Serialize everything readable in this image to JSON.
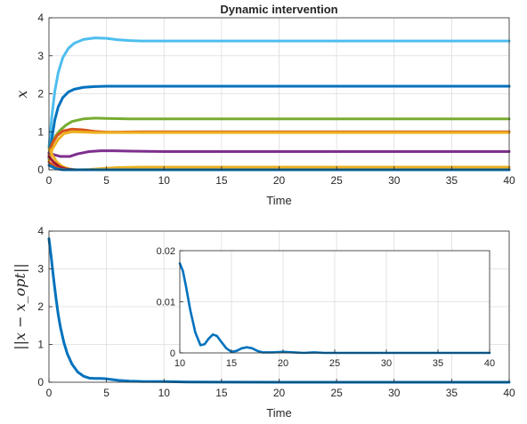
{
  "chart_data": [
    {
      "id": "top",
      "type": "line",
      "title": "Dynamic intervention",
      "xlabel": "Time",
      "ylabel": "x",
      "xlim": [
        0,
        40
      ],
      "ylim": [
        0,
        4
      ],
      "xticks": [
        0,
        5,
        10,
        15,
        20,
        25,
        30,
        35,
        40
      ],
      "yticks": [
        0,
        1,
        2,
        3,
        4
      ],
      "grid": true,
      "series": [
        {
          "color": "#4DBEEE",
          "points": [
            [
              0,
              0.6
            ],
            [
              0.25,
              1.4
            ],
            [
              0.5,
              2.05
            ],
            [
              0.8,
              2.55
            ],
            [
              1.2,
              2.95
            ],
            [
              1.7,
              3.2
            ],
            [
              2.2,
              3.33
            ],
            [
              3,
              3.43
            ],
            [
              4,
              3.47
            ],
            [
              5,
              3.46
            ],
            [
              6,
              3.42
            ],
            [
              7,
              3.4
            ],
            [
              8,
              3.39
            ],
            [
              10,
              3.39
            ],
            [
              40,
              3.39
            ]
          ]
        },
        {
          "color": "#0072BD",
          "points": [
            [
              0,
              0.3
            ],
            [
              0.25,
              0.8
            ],
            [
              0.5,
              1.3
            ],
            [
              0.8,
              1.65
            ],
            [
              1.2,
              1.9
            ],
            [
              1.7,
              2.05
            ],
            [
              2.2,
              2.12
            ],
            [
              3,
              2.17
            ],
            [
              4,
              2.19
            ],
            [
              5,
              2.2
            ],
            [
              7,
              2.2
            ],
            [
              40,
              2.2
            ]
          ]
        },
        {
          "color": "#77AC30",
          "points": [
            [
              0,
              0.45
            ],
            [
              0.3,
              0.7
            ],
            [
              0.6,
              0.9
            ],
            [
              1,
              1.05
            ],
            [
              1.5,
              1.18
            ],
            [
              2,
              1.27
            ],
            [
              3,
              1.34
            ],
            [
              4,
              1.36
            ],
            [
              5,
              1.35
            ],
            [
              7,
              1.34
            ],
            [
              10,
              1.34
            ],
            [
              40,
              1.34
            ]
          ]
        },
        {
          "color": "#D95319",
          "points": [
            [
              0,
              0.4
            ],
            [
              0.3,
              0.7
            ],
            [
              0.7,
              0.9
            ],
            [
              1.2,
              1.02
            ],
            [
              2,
              1.07
            ],
            [
              3,
              1.05
            ],
            [
              4,
              1.01
            ],
            [
              5,
              0.99
            ],
            [
              6,
              0.99
            ],
            [
              8,
              1.0
            ],
            [
              40,
              1.0
            ]
          ]
        },
        {
          "color": "#EDB120",
          "points": [
            [
              0,
              0.25
            ],
            [
              0.3,
              0.55
            ],
            [
              0.8,
              0.8
            ],
            [
              1.3,
              0.95
            ],
            [
              2,
              1.0
            ],
            [
              3,
              0.99
            ],
            [
              4,
              0.98
            ],
            [
              40,
              0.98
            ]
          ]
        },
        {
          "color": "#7E2F8E",
          "points": [
            [
              0,
              0.45
            ],
            [
              0.4,
              0.4
            ],
            [
              1,
              0.35
            ],
            [
              1.8,
              0.35
            ],
            [
              2.5,
              0.42
            ],
            [
              3.5,
              0.48
            ],
            [
              4.5,
              0.5
            ],
            [
              5.5,
              0.5
            ],
            [
              7,
              0.49
            ],
            [
              10,
              0.48
            ],
            [
              40,
              0.48
            ]
          ]
        },
        {
          "color": "#EDB120",
          "points": [
            [
              0,
              0.55
            ],
            [
              0.3,
              0.38
            ],
            [
              0.7,
              0.2
            ],
            [
              1.2,
              0.08
            ],
            [
              1.8,
              0.02
            ],
            [
              2.5,
              0.0
            ],
            [
              3.5,
              0.01
            ],
            [
              5,
              0.04
            ],
            [
              6,
              0.06
            ],
            [
              8,
              0.07
            ],
            [
              40,
              0.07
            ]
          ]
        },
        {
          "color": "#A2142F",
          "points": [
            [
              0,
              0.35
            ],
            [
              0.4,
              0.2
            ],
            [
              0.9,
              0.08
            ],
            [
              1.5,
              0.02
            ],
            [
              2.2,
              0.0
            ],
            [
              40,
              0.0
            ]
          ]
        },
        {
          "color": "#D95319",
          "points": [
            [
              0,
              0.2
            ],
            [
              0.5,
              0.08
            ],
            [
              1,
              0.02
            ],
            [
              1.6,
              0.0
            ],
            [
              40,
              0.0
            ]
          ]
        },
        {
          "color": "#0072BD",
          "points": [
            [
              0,
              0.12
            ],
            [
              0.6,
              0.03
            ],
            [
              1.2,
              0.0
            ],
            [
              40,
              0.0
            ]
          ]
        }
      ]
    },
    {
      "id": "bottom",
      "type": "line",
      "title": "",
      "xlabel": "Time",
      "ylabel": "||x − x_opt||",
      "xlim": [
        0,
        40
      ],
      "ylim": [
        0,
        4
      ],
      "xticks": [
        0,
        5,
        10,
        15,
        20,
        25,
        30,
        35,
        40
      ],
      "yticks": [
        0,
        1,
        2,
        3,
        4
      ],
      "grid": true,
      "series": [
        {
          "color": "#0072BD",
          "points": [
            [
              0,
              3.8
            ],
            [
              0.2,
              3.3
            ],
            [
              0.4,
              2.75
            ],
            [
              0.6,
              2.25
            ],
            [
              0.8,
              1.8
            ],
            [
              1.0,
              1.45
            ],
            [
              1.3,
              1.05
            ],
            [
              1.6,
              0.75
            ],
            [
              2.0,
              0.48
            ],
            [
              2.5,
              0.27
            ],
            [
              3.0,
              0.16
            ],
            [
              3.5,
              0.11
            ],
            [
              4.0,
              0.1
            ],
            [
              4.5,
              0.1
            ],
            [
              5.0,
              0.09
            ],
            [
              5.5,
              0.07
            ],
            [
              6,
              0.05
            ],
            [
              7,
              0.03
            ],
            [
              8,
              0.02
            ],
            [
              10,
              0.018
            ],
            [
              12,
              0.005
            ],
            [
              15,
              0.002
            ],
            [
              20,
              0.0
            ],
            [
              40,
              0.0
            ]
          ]
        }
      ]
    },
    {
      "id": "inset",
      "type": "line",
      "xlim": [
        10,
        40
      ],
      "ylim": [
        0,
        0.02
      ],
      "xticks": [
        10,
        15,
        20,
        25,
        30,
        35,
        40
      ],
      "yticks": [
        0,
        0.01,
        0.02
      ],
      "ytick_labels": [
        "0",
        "0.01",
        "0.02"
      ],
      "grid": true,
      "series": [
        {
          "color": "#0072BD",
          "points": [
            [
              10,
              0.0175
            ],
            [
              10.3,
              0.016
            ],
            [
              10.6,
              0.013
            ],
            [
              11,
              0.0085
            ],
            [
              11.5,
              0.004
            ],
            [
              12,
              0.0015
            ],
            [
              12.4,
              0.0017
            ],
            [
              12.8,
              0.0028
            ],
            [
              13.2,
              0.0036
            ],
            [
              13.6,
              0.0033
            ],
            [
              14,
              0.0022
            ],
            [
              14.5,
              0.0009
            ],
            [
              15,
              0.0002
            ],
            [
              15.5,
              0.0004
            ],
            [
              16,
              0.0009
            ],
            [
              16.5,
              0.0011
            ],
            [
              17,
              0.0009
            ],
            [
              17.5,
              0.0004
            ],
            [
              18,
              0.0001
            ],
            [
              19,
              0.0001
            ],
            [
              20,
              0.0002
            ],
            [
              21,
              0.0001
            ],
            [
              22,
              0.0
            ],
            [
              23,
              0.0001
            ],
            [
              24,
              0.0
            ],
            [
              40,
              0.0
            ]
          ]
        }
      ]
    }
  ]
}
